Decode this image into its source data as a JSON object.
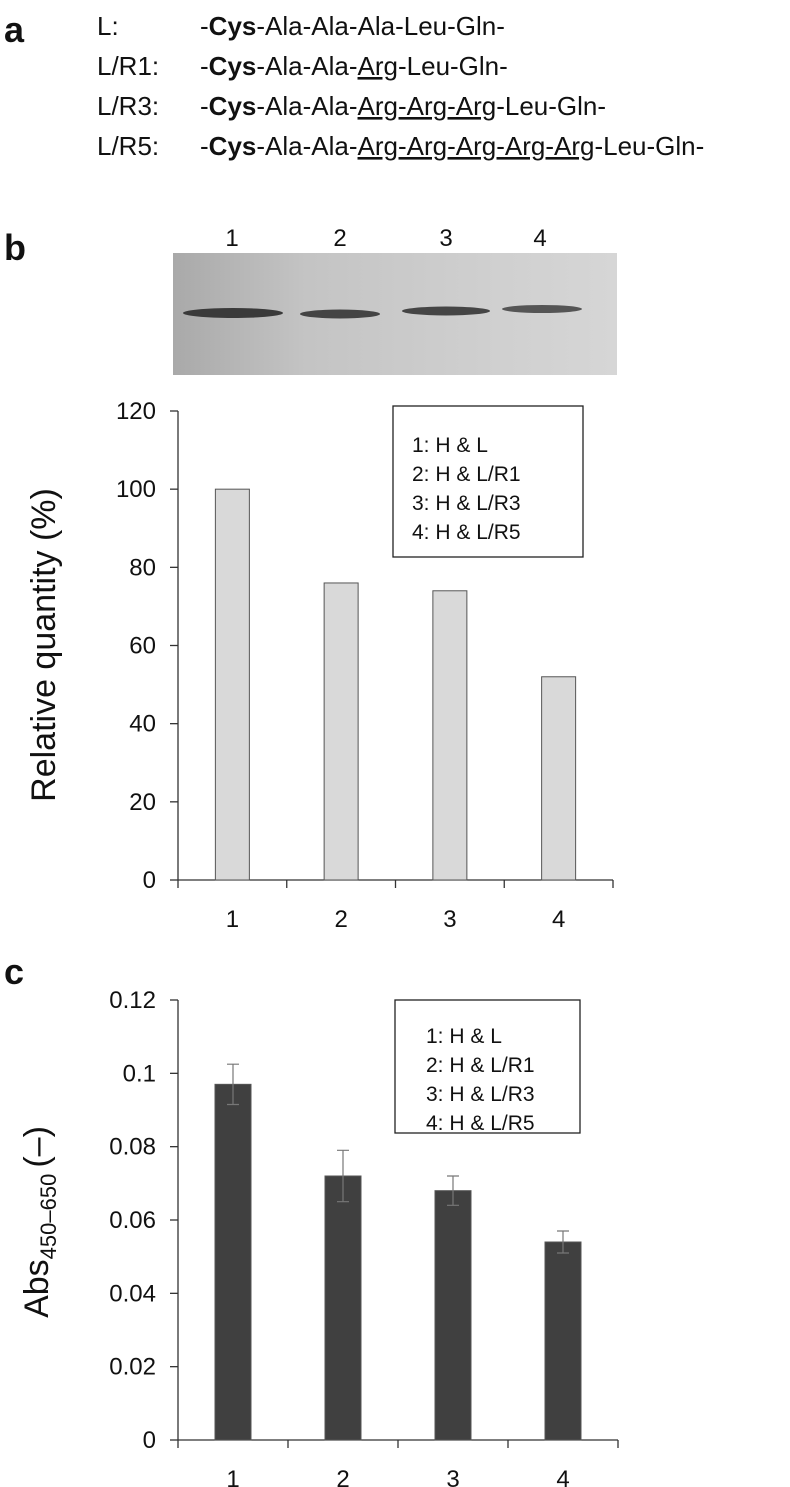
{
  "panel_labels": [
    "a",
    "b",
    "c"
  ],
  "sequences": [
    {
      "label": "L:",
      "parts": [
        {
          "text": "-"
        },
        {
          "text": "Cys",
          "bold": true
        },
        {
          "text": "-Ala-Ala-Ala-Leu-Gln-"
        }
      ]
    },
    {
      "label": "L/R1:",
      "parts": [
        {
          "text": "-"
        },
        {
          "text": "Cys",
          "bold": true
        },
        {
          "text": "-Ala-Ala-"
        },
        {
          "text": "Arg",
          "underline": true
        },
        {
          "text": "-Leu-Gln-"
        }
      ]
    },
    {
      "label": "L/R3:",
      "parts": [
        {
          "text": "-"
        },
        {
          "text": "Cys",
          "bold": true
        },
        {
          "text": "-Ala-Ala-"
        },
        {
          "text": "Arg-Arg-Arg",
          "underline": true
        },
        {
          "text": "-Leu-Gln-"
        }
      ]
    },
    {
      "label": "L/R5:",
      "parts": [
        {
          "text": "-"
        },
        {
          "text": "Cys",
          "bold": true
        },
        {
          "text": "-Ala-Ala-"
        },
        {
          "text": "Arg-Arg-Arg-Arg-Arg",
          "underline": true
        },
        {
          "text": "-Leu-Gln-"
        }
      ]
    }
  ],
  "gel": {
    "lanes": [
      "1",
      "2",
      "3",
      "4"
    ]
  },
  "chart_data": [
    {
      "type": "bar",
      "ylabel": "Relative quantity (%)",
      "categories": [
        "1",
        "2",
        "3",
        "4"
      ],
      "values": [
        100,
        76,
        74,
        52
      ],
      "color": "#d9d9d9",
      "ylim": [
        0,
        120
      ],
      "yticks": [
        0,
        20,
        40,
        60,
        80,
        100,
        120
      ],
      "legend_box": [
        "1: H & L",
        "2: H & L/R1",
        "3: H & L/R3",
        "4: H & L/R5"
      ]
    },
    {
      "type": "bar",
      "ylabel": "Abs",
      "ylabel_subscript": "450–650",
      "ylabel_suffix": "(–)",
      "categories": [
        "1",
        "2",
        "3",
        "4"
      ],
      "values": [
        0.097,
        0.072,
        0.068,
        0.054
      ],
      "errors": [
        0.0055,
        0.007,
        0.004,
        0.003
      ],
      "color": "#404040",
      "ylim": [
        0,
        0.12
      ],
      "yticks": [
        0,
        0.02,
        0.04,
        0.06,
        0.08,
        0.1,
        0.12
      ],
      "legend_box": [
        "1: H & L",
        "2: H & L/R1",
        "3: H & L/R3",
        "4: H & L/R5"
      ]
    }
  ]
}
